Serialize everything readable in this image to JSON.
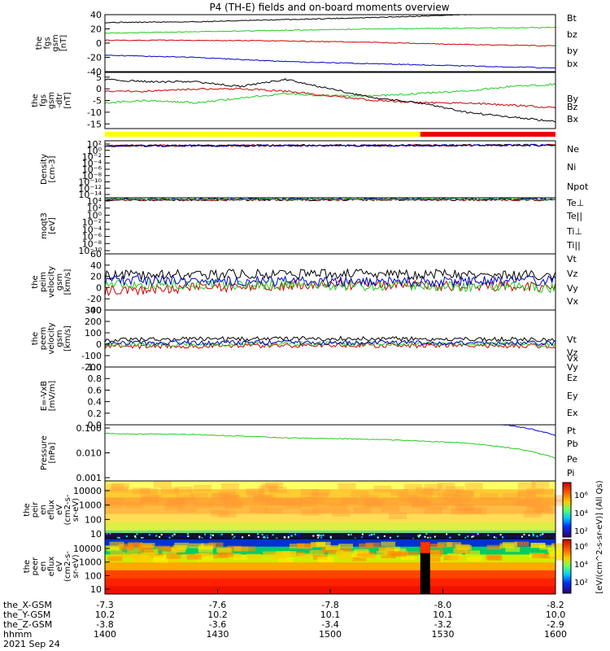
{
  "title": "P4 (TH-E) fields and on-board moments overview",
  "colors": {
    "black": "#000000",
    "red": "#cc0000",
    "green": "#22cc22",
    "blue": "#0000cc",
    "yellow": "#ffff00",
    "ered": "#ee0000"
  },
  "chart_data": [
    {
      "id": "fgs-gsm",
      "type": "line",
      "ylabel": [
        "the",
        "fgs",
        "gsm",
        "[nT]"
      ],
      "ylim": [
        -40,
        40
      ],
      "yticks": [
        40,
        20,
        0,
        -20,
        -40
      ],
      "series": [
        {
          "name": "Bt",
          "color": "#000000",
          "x": [
            0,
            0.2,
            0.4,
            0.6,
            0.8,
            1.0
          ],
          "y": [
            29,
            30,
            33,
            36,
            40,
            44
          ]
        },
        {
          "name": "bz",
          "color": "#cc0000",
          "x": [
            0,
            0.2,
            0.4,
            0.6,
            0.8,
            1.0
          ],
          "y": [
            4,
            4,
            3,
            1,
            -2,
            -4
          ]
        },
        {
          "name": "by",
          "color": "#22cc22",
          "x": [
            0,
            0.2,
            0.4,
            0.6,
            0.8,
            1.0
          ],
          "y": [
            14,
            16,
            18,
            20,
            21,
            22
          ]
        },
        {
          "name": "bx",
          "color": "#0000cc",
          "x": [
            0,
            0.2,
            0.4,
            0.6,
            0.8,
            1.0
          ],
          "y": [
            -17,
            -20,
            -26,
            -29,
            -32,
            -35
          ]
        }
      ]
    },
    {
      "id": "fgs-gsm-dtr",
      "type": "line",
      "ylabel": [
        "the",
        "fgs",
        "gsm",
        "-dtr",
        "[nT]"
      ],
      "ylim": [
        -17,
        7
      ],
      "yticks": [
        5,
        0,
        -5,
        -10,
        -15
      ],
      "series": [
        {
          "name": "By",
          "color": "#22cc22",
          "x": [
            0,
            0.1,
            0.2,
            0.3,
            0.4,
            0.5,
            0.6,
            0.7,
            0.8,
            0.9,
            1.0
          ],
          "y": [
            -6,
            -5,
            -6,
            -4,
            -2,
            -3,
            -3,
            -2,
            -1,
            1,
            2
          ]
        },
        {
          "name": "Bz",
          "color": "#cc0000",
          "x": [
            0,
            0.1,
            0.2,
            0.3,
            0.4,
            0.5,
            0.6,
            0.7,
            0.8,
            0.9,
            1.0
          ],
          "y": [
            -1,
            -1,
            0,
            0,
            -1,
            -3,
            -5,
            -6,
            -6,
            -7,
            -8
          ]
        },
        {
          "name": "Bx",
          "color": "#000000",
          "x": [
            0,
            0.1,
            0.2,
            0.3,
            0.4,
            0.5,
            0.6,
            0.7,
            0.8,
            0.9,
            1.0
          ],
          "y": [
            4,
            3,
            3,
            1,
            4,
            0,
            -4,
            -6,
            -10,
            -12,
            -14
          ]
        }
      ]
    },
    {
      "id": "density",
      "type": "line",
      "ylabel": [
        "Density",
        "[cm-3]"
      ],
      "log": true,
      "ytick_labels": [
        "10²",
        "10⁰",
        "10⁻²",
        "10⁻⁴",
        "10⁻⁶",
        "10⁻⁸",
        "10⁻¹⁰",
        "10⁻¹²",
        "10⁻¹⁴"
      ],
      "series": [
        {
          "name": "Ne",
          "color": "#cc0000",
          "x": [
            0,
            0.5,
            1.0
          ],
          "y": [
            0.7,
            0.85,
            1.1
          ]
        },
        {
          "name": "Ni",
          "color": "#000000",
          "x": [
            0,
            0.5,
            1.0
          ],
          "y": [
            0.65,
            0.8,
            1.0
          ]
        },
        {
          "name": "Npot",
          "color": "#0000cc",
          "x": [
            0,
            0.5,
            1.0
          ],
          "y": [
            0.6,
            0.75,
            0.95
          ]
        }
      ]
    },
    {
      "id": "temperature",
      "type": "line",
      "ylabel": [
        "moqt3",
        "[eV]"
      ],
      "log": true,
      "ytick_labels": [
        "10⁴",
        "10²",
        "10⁰",
        "10⁻²",
        "10⁻⁴",
        "10⁻⁶",
        "10⁻⁸",
        "10⁻¹⁰"
      ],
      "series": [
        {
          "name": "Te⊥",
          "color": "#cc0000",
          "x": [
            0,
            1.0
          ],
          "y": [
            2.3,
            2.4
          ]
        },
        {
          "name": "Te||",
          "color": "#000000",
          "x": [
            0,
            1.0
          ],
          "y": [
            2.5,
            2.6
          ]
        },
        {
          "name": "Ti⊥",
          "color": "#0000cc",
          "x": [
            0,
            1.0
          ],
          "y": [
            2.8,
            2.9
          ]
        },
        {
          "name": "Ti||",
          "color": "#22cc22",
          "x": [
            0,
            1.0
          ],
          "y": [
            2.7,
            2.8
          ]
        }
      ]
    },
    {
      "id": "peim-velocity",
      "type": "line",
      "ylabel": [
        "the",
        "peim",
        "velocity",
        "gsm",
        "[km/s]"
      ],
      "ylim": [
        -40,
        60
      ],
      "yticks": [
        60,
        40,
        20,
        0,
        -20,
        -40
      ],
      "series": [
        {
          "name": "Vt",
          "color": "#000000",
          "x": [
            0,
            0.5,
            1.0
          ],
          "y": [
            22,
            25,
            22
          ]
        },
        {
          "name": "Vz",
          "color": "#cc0000",
          "x": [
            0,
            0.5,
            1.0
          ],
          "y": [
            -5,
            5,
            2
          ]
        },
        {
          "name": "Vy",
          "color": "#22cc22",
          "x": [
            0,
            0.5,
            1.0
          ],
          "y": [
            6,
            4,
            0
          ]
        },
        {
          "name": "Vx",
          "color": "#0000cc",
          "x": [
            0,
            0.5,
            1.0
          ],
          "y": [
            14,
            10,
            12
          ]
        }
      ]
    },
    {
      "id": "peem-velocity",
      "type": "line",
      "ylabel": [
        "the",
        "peem",
        "velocity",
        "gsm",
        "[km/s]"
      ],
      "ylim": [
        -200,
        300
      ],
      "yticks": [
        300,
        200,
        100,
        0,
        -100,
        -200
      ],
      "series": [
        {
          "name": "Vt",
          "color": "#000000",
          "x": [
            0,
            0.5,
            1.0
          ],
          "y": [
            40,
            50,
            40
          ]
        },
        {
          "name": "Vz",
          "color": "#cc0000",
          "x": [
            0,
            0.5,
            1.0
          ],
          "y": [
            -20,
            -10,
            -15
          ]
        },
        {
          "name": "Vy",
          "color": "#22cc22",
          "x": [
            0,
            0.5,
            1.0
          ],
          "y": [
            -5,
            5,
            0
          ]
        },
        {
          "name": "Vx",
          "color": "#0000cc",
          "x": [
            0,
            0.5,
            1.0
          ],
          "y": [
            10,
            15,
            10
          ]
        }
      ]
    },
    {
      "id": "efield",
      "type": "line",
      "ylabel": [
        "E=-VxB",
        "[mV/m]"
      ],
      "ylim": [
        0,
        1
      ],
      "yticks": [
        1.0,
        0.8,
        0.6,
        0.4,
        0.2,
        0.0
      ],
      "ytick_labels": [
        "1.0",
        "0.8",
        "0.6",
        "0.4",
        "0.2",
        "0.0"
      ],
      "series": [
        {
          "name": "Ez",
          "color": "#cc0000",
          "x": [],
          "y": []
        },
        {
          "name": "Ey",
          "color": "#22cc22",
          "x": [],
          "y": []
        },
        {
          "name": "Ex",
          "color": "#0000cc",
          "x": [],
          "y": []
        }
      ]
    },
    {
      "id": "pressure",
      "type": "line",
      "ylabel": [
        "Pressure",
        "[nPa]"
      ],
      "log": true,
      "ytick_labels": [
        "0.100",
        "0.010",
        "0.001"
      ],
      "series": [
        {
          "name": "Pt",
          "color": "#000000",
          "x": [
            0,
            0.2,
            0.4,
            0.6,
            0.8,
            1.0
          ],
          "y": [
            0.25,
            0.3,
            0.32,
            0.38,
            0.48,
            0.55
          ]
        },
        {
          "name": "Pb",
          "color": "#cc0000",
          "x": [
            0,
            0.2,
            0.4,
            0.6,
            0.8,
            1.0
          ],
          "y": [
            0.25,
            0.3,
            0.32,
            0.38,
            0.48,
            0.55
          ]
        },
        {
          "name": "Pe",
          "color": "#22cc22",
          "x": [
            0,
            0.2,
            0.4,
            0.6,
            0.8,
            1.0
          ],
          "y": [
            0.06,
            0.055,
            0.04,
            0.035,
            0.025,
            0.006
          ]
        },
        {
          "name": "Pi",
          "color": "#0000cc",
          "x": [
            0,
            0.2,
            0.4,
            0.6,
            0.8,
            1.0
          ],
          "y": [
            0.28,
            0.3,
            0.2,
            0.22,
            0.2,
            0.05
          ]
        }
      ]
    },
    {
      "id": "peir-spectrogram",
      "type": "heatmap",
      "ylabel": [
        "the",
        "peir",
        "en",
        "eflux",
        "eV",
        "(cm2-s-",
        "sr-eV)"
      ],
      "ytick_labels": [
        "10000",
        "1000",
        "100",
        "10"
      ]
    },
    {
      "id": "peer-spectrogram",
      "type": "heatmap",
      "ylabel": [
        "the",
        "peer",
        "en",
        "eflux",
        "eV",
        "(cm2-s-",
        "sr-eV)"
      ],
      "ytick_labels": [
        "10000",
        "1000",
        "100",
        "10"
      ]
    }
  ],
  "colorbar": {
    "label": "[eV/(cm^2-s-sr-eV)] (All Qs)",
    "ticks_top": [
      "10⁶",
      "10⁴",
      "10²"
    ],
    "ticks_bottom": [
      "10⁶",
      "10⁴",
      "10²"
    ]
  },
  "xaxis": {
    "rows": [
      {
        "label": "the_X-GSM",
        "values": [
          "-7.3",
          "-7.6",
          "-7.8",
          "-8.0",
          "-8.2"
        ]
      },
      {
        "label": "the_Y-GSM",
        "values": [
          "10.2",
          "10.2",
          "10.1",
          "10.1",
          "10.0"
        ]
      },
      {
        "label": "the_Z-GSM",
        "values": [
          "-3.8",
          "-3.6",
          "-3.4",
          "-3.2",
          "-2.9"
        ]
      },
      {
        "label": "hhmm",
        "values": [
          "1400",
          "1430",
          "1500",
          "1530",
          "1600"
        ]
      }
    ],
    "date": "2021 Sep 24"
  },
  "mode_bar": {
    "yellow_until": 0.7
  }
}
